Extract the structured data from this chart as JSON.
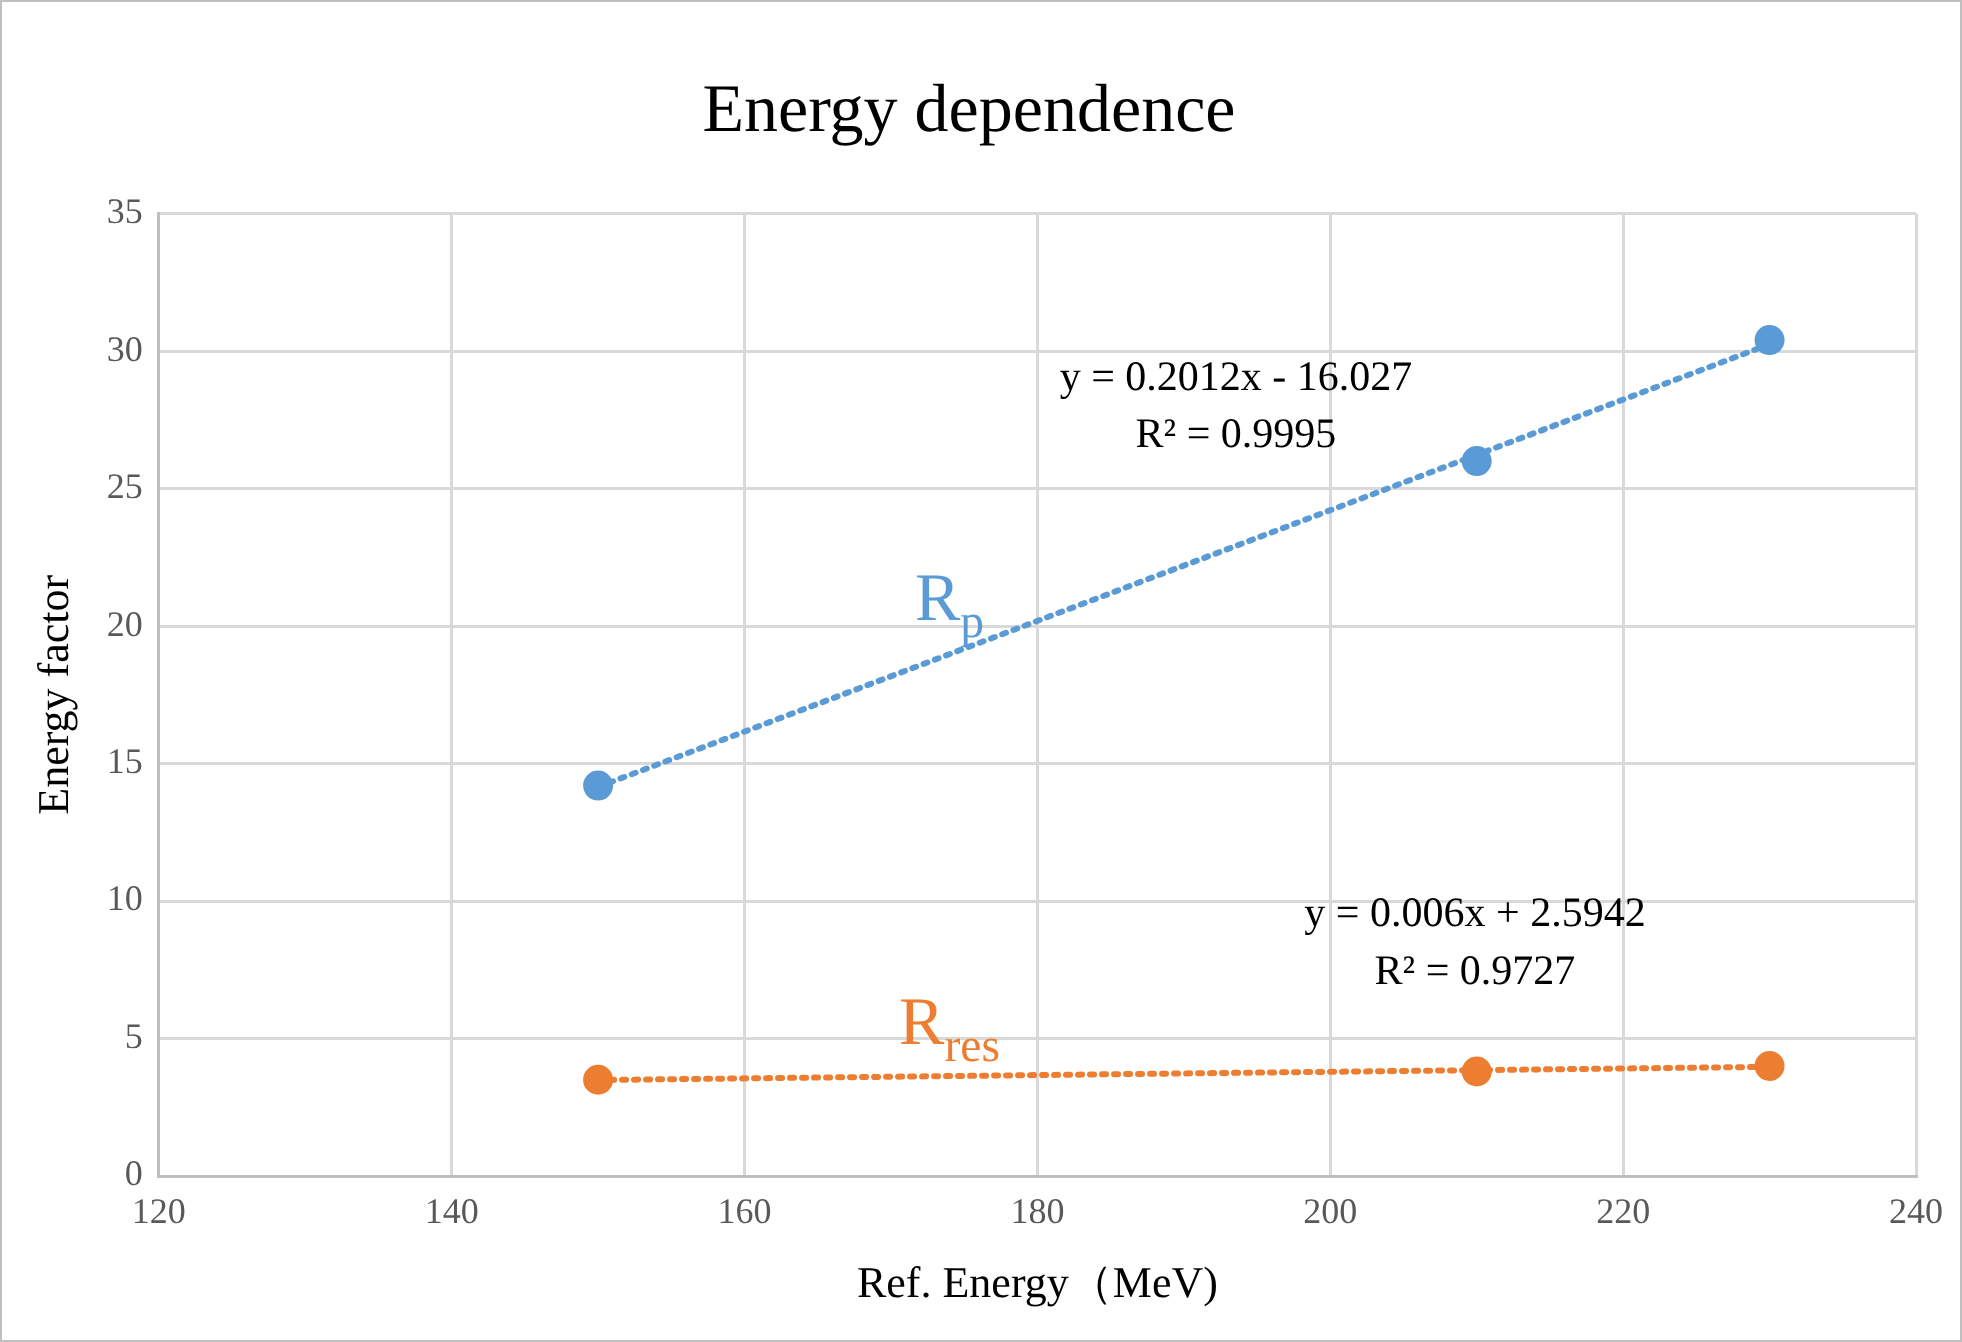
{
  "chart_data": {
    "type": "scatter",
    "title": "Energy dependence",
    "xlabel": "Ref. Energy（MeV)",
    "ylabel": "Energy factor",
    "xlim": [
      120,
      240
    ],
    "xticks": [
      120,
      140,
      160,
      180,
      200,
      220,
      240
    ],
    "ylim": [
      0,
      35
    ],
    "yticks": [
      0,
      5,
      10,
      15,
      20,
      25,
      30,
      35
    ],
    "grid": true,
    "legend": false,
    "marker": "circle",
    "series": [
      {
        "name": "R$_{p}$",
        "type": "scatter",
        "color": "#5b9bd5",
        "x": [
          150,
          210,
          230
        ],
        "values": [
          14.2,
          26,
          30.4
        ]
      },
      {
        "type": "line",
        "color": "#5b9bd5",
        "x": [
          150,
          230
        ],
        "values": [
          14.15,
          30.25
        ],
        "line_style": "dotted",
        "marker": "none"
      },
      {
        "name": "R$_{res}$",
        "type": "scatter",
        "color": "#ed7d31",
        "x": [
          150,
          210,
          230
        ],
        "values": [
          3.5,
          3.8,
          4.0
        ]
      },
      {
        "type": "line",
        "color": "#ed7d31",
        "x": [
          150,
          230
        ],
        "values": [
          3.49,
          3.97
        ],
        "line_style": "dotted",
        "marker": "none"
      }
    ],
    "annotations": [
      "y = 0.2012x - 16.027",
      "R² = 0.9995",
      "y = 0.006x + 2.5942",
      "R² = 0.9727"
    ]
  }
}
